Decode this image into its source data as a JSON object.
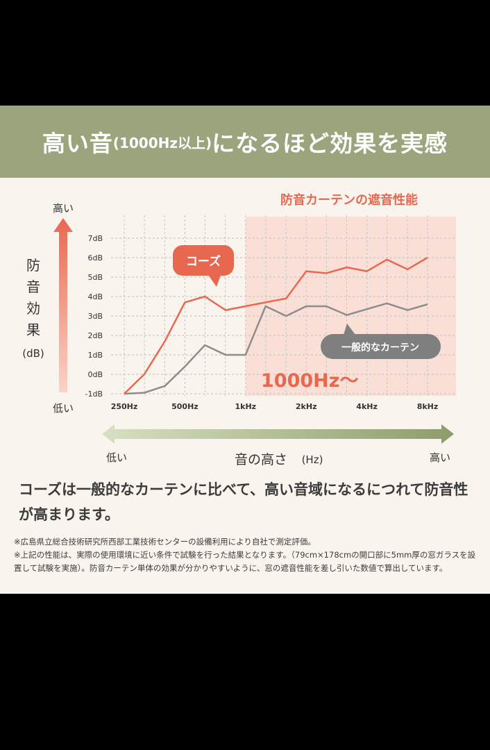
{
  "header": {
    "title_main": "高い音",
    "title_sub": "(1000Hz以上)",
    "title_rest": "になるほど効果を実感"
  },
  "chart_data": {
    "type": "line",
    "highlight_label": "防音カーテンの遮音性能",
    "region_label": "1000Hz〜",
    "y_axis": {
      "top_label": "高い",
      "bottom_label": "低い",
      "title_chars": [
        "防",
        "音",
        "効",
        "果"
      ],
      "unit": "(dB)",
      "ylim": [
        -1,
        7
      ],
      "ticks": [
        "7dB",
        "6dB",
        "5dB",
        "4dB",
        "3dB",
        "2dB",
        "1dB",
        "0dB",
        "-1dB"
      ]
    },
    "x_axis": {
      "ticks": [
        "250Hz",
        "500Hz",
        "1kHz",
        "2kHz",
        "4kHz",
        "8kHz"
      ],
      "left_label": "低い",
      "title": "音の高さ",
      "unit": "(Hz)",
      "right_label": "高い"
    },
    "series": [
      {
        "name": "コーズ",
        "color": "#e8684f",
        "points": [
          [
            0,
            -1
          ],
          [
            0.33,
            0
          ],
          [
            0.67,
            1.7
          ],
          [
            1,
            3.7
          ],
          [
            1.33,
            4
          ],
          [
            1.67,
            3.3
          ],
          [
            2,
            3.5
          ],
          [
            2.33,
            3.7
          ],
          [
            2.67,
            3.9
          ],
          [
            3,
            5.3
          ],
          [
            3.33,
            5.2
          ],
          [
            3.67,
            5.5
          ],
          [
            4,
            5.3
          ],
          [
            4.33,
            5.9
          ],
          [
            4.67,
            5.4
          ],
          [
            5,
            6
          ]
        ]
      },
      {
        "name": "一般的なカーテン",
        "color": "#8c8c8c",
        "points": [
          [
            0,
            -1
          ],
          [
            0.33,
            -0.95
          ],
          [
            0.67,
            -0.6
          ],
          [
            1,
            0.4
          ],
          [
            1.33,
            1.5
          ],
          [
            1.67,
            1
          ],
          [
            2,
            1
          ],
          [
            2.33,
            3.5
          ],
          [
            2.67,
            3
          ],
          [
            3,
            3.5
          ],
          [
            3.33,
            3.5
          ],
          [
            3.67,
            3.05
          ],
          [
            4,
            3.35
          ],
          [
            4.33,
            3.65
          ],
          [
            4.67,
            3.3
          ],
          [
            5,
            3.6
          ]
        ]
      }
    ]
  },
  "description": "コーズは一般的なカーテンに比べて、高い音域になるにつれて防音性が高まります。",
  "notes": [
    "※広島県立総合技術研究所西部工業技術センターの設備利用により自社で測定評価。",
    "※上記の性能は、実際の使用環境に近い条件で試験を行った結果となります。（79cm×178cmの開口部に5mm厚の窓ガラスを設置して試験を実施）。防音カーテン単体の効果が分かりやすいように、窓の遮音性能を差し引いた数値で算出しています。"
  ]
}
